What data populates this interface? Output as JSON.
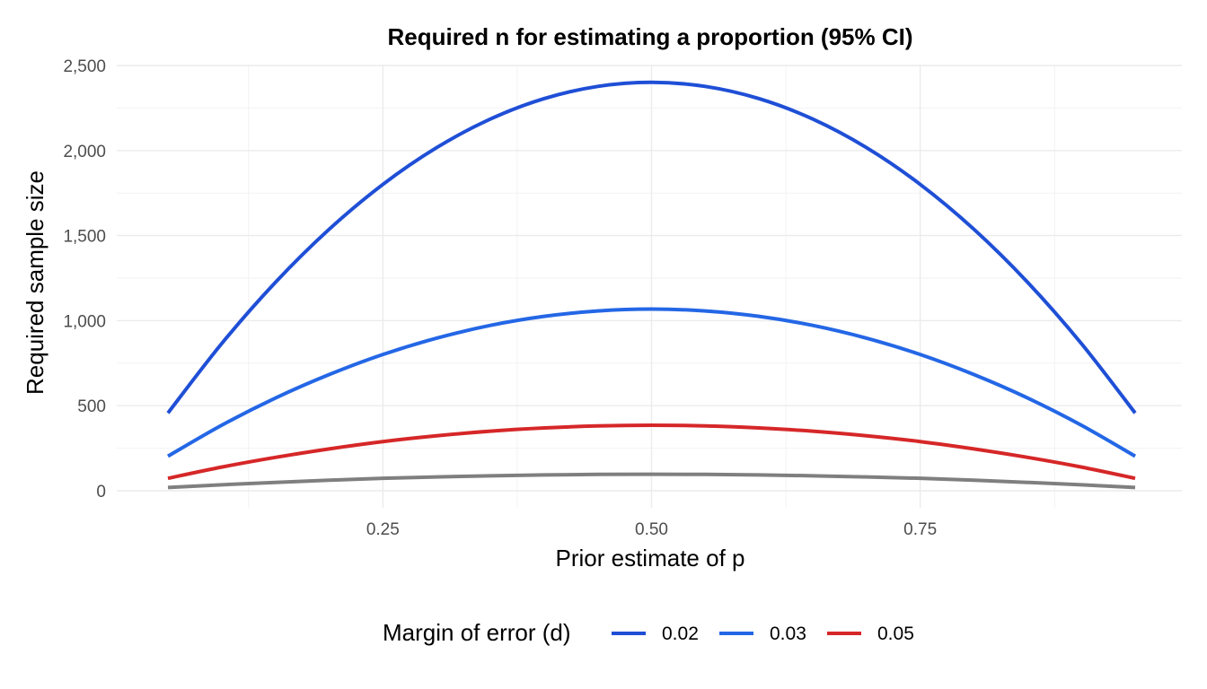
{
  "chart_data": {
    "type": "line",
    "title": "Required n for estimating a proportion (95% CI)",
    "xlabel": "Prior estimate of p",
    "ylabel": "Required sample size",
    "xlim": [
      0.05,
      0.95
    ],
    "ylim": [
      0,
      2500
    ],
    "x_ticks": [
      {
        "value": 0.25,
        "label": "0.25"
      },
      {
        "value": 0.5,
        "label": "0.50"
      },
      {
        "value": 0.75,
        "label": "0.75"
      }
    ],
    "y_ticks": [
      {
        "value": 0,
        "label": "0"
      },
      {
        "value": 500,
        "label": "500"
      },
      {
        "value": 1000,
        "label": "1,000"
      },
      {
        "value": 1500,
        "label": "1,500"
      },
      {
        "value": 2000,
        "label": "2,000"
      },
      {
        "value": 2500,
        "label": "2,500"
      }
    ],
    "grid": true,
    "legend": {
      "title": "Margin of error (d)",
      "position": "bottom"
    },
    "x": [
      0.05,
      0.1,
      0.15,
      0.2,
      0.25,
      0.3,
      0.35,
      0.4,
      0.45,
      0.5,
      0.55,
      0.6,
      0.65,
      0.7,
      0.75,
      0.8,
      0.85,
      0.9,
      0.95
    ],
    "series": [
      {
        "name": "0.02",
        "color": "#1f4fd6",
        "in_legend": true,
        "values": [
          457,
          865,
          1225,
          1537,
          1801,
          2017,
          2185,
          2305,
          2377,
          2401,
          2377,
          2305,
          2185,
          2017,
          1801,
          1537,
          1225,
          865,
          457
        ]
      },
      {
        "name": "0.03",
        "color": "#2467e6",
        "in_legend": true,
        "values": [
          203,
          385,
          545,
          683,
          801,
          897,
          972,
          1025,
          1057,
          1068,
          1057,
          1025,
          972,
          897,
          801,
          683,
          545,
          385,
          203
        ]
      },
      {
        "name": "0.05",
        "color": "#d62728",
        "in_legend": true,
        "values": [
          73,
          139,
          196,
          246,
          289,
          323,
          350,
          369,
          381,
          385,
          381,
          369,
          350,
          323,
          289,
          246,
          196,
          139,
          73
        ]
      },
      {
        "name": "",
        "color": "#7f7f7f",
        "in_legend": false,
        "values": [
          19,
          35,
          49,
          62,
          73,
          81,
          88,
          93,
          96,
          97,
          96,
          93,
          88,
          81,
          73,
          62,
          49,
          35,
          19
        ]
      }
    ]
  }
}
